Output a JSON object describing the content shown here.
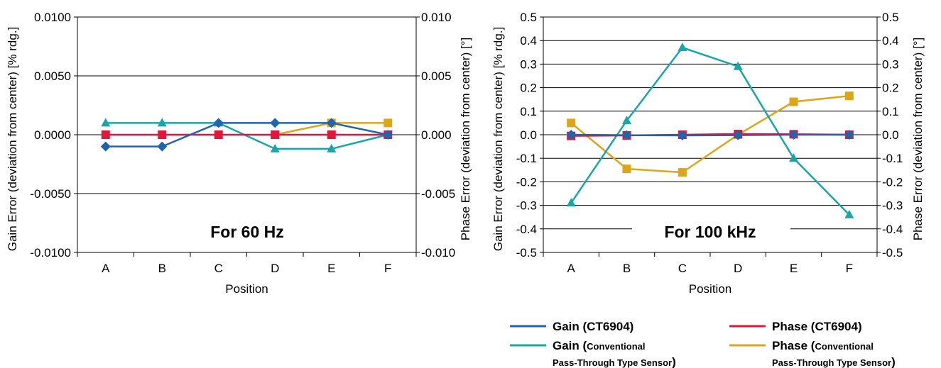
{
  "chart_data": [
    {
      "type": "line",
      "caption": "For 60 Hz",
      "categories": [
        "A",
        "B",
        "C",
        "D",
        "E",
        "F"
      ],
      "xlabel": "Position",
      "ylabel": "Gain Error (deviation from center) [% rdg.]",
      "y2label": "Phase Error (deviation from center) [°]",
      "ylim": [
        -0.01,
        0.01
      ],
      "y2lim": [
        -0.01,
        0.01
      ],
      "yticks": [
        "0.0100",
        "0.0050",
        "0.0000",
        "-0.0050",
        "-0.0100"
      ],
      "y2ticks": [
        "0.010",
        "0.005",
        "0.000",
        "-0.005",
        "-0.010"
      ],
      "grid": "horizontal",
      "series": [
        {
          "name": "Gain (CT6904)",
          "axis": "left",
          "marker": "diamond",
          "color": "#1f64ad",
          "values": [
            -0.001,
            -0.001,
            0.001,
            0.001,
            0.001,
            0.0
          ]
        },
        {
          "name": "Phase (CT6904)",
          "axis": "right",
          "marker": "square",
          "color": "#e0163d",
          "values": [
            0.0,
            0.0,
            0.0,
            0.0,
            0.0,
            0.0
          ]
        },
        {
          "name": "Gain (Conventional Pass-Through Type Sensor)",
          "axis": "left",
          "marker": "triangle",
          "color": "#1aa5a8",
          "values": [
            0.001,
            0.001,
            0.001,
            -0.0012,
            -0.0012,
            0.0
          ]
        },
        {
          "name": "Phase (Conventional Pass-Through Type Sensor)",
          "axis": "right",
          "marker": "square",
          "color": "#dba61c",
          "values": [
            null,
            null,
            null,
            0.0,
            0.001,
            0.001
          ]
        }
      ]
    },
    {
      "type": "line",
      "caption": "For 100 kHz",
      "categories": [
        "A",
        "B",
        "C",
        "D",
        "E",
        "F"
      ],
      "xlabel": "Position",
      "ylabel": "Gain Error (deviation from center) [% rdg.]",
      "y2label": "Phase Error (deviation from center) [°]",
      "ylim": [
        -0.5,
        0.5
      ],
      "y2lim": [
        -0.5,
        0.5
      ],
      "yticks": [
        "0.5",
        "0.4",
        "0.3",
        "0.2",
        "0.1",
        "0.0",
        "-0.1",
        "-0.2",
        "-0.3",
        "-0.4",
        "-0.5"
      ],
      "y2ticks": [
        "0.5",
        "0.4",
        "0.3",
        "0.2",
        "0.1",
        "0.0",
        "-0.1",
        "-0.2",
        "-0.3",
        "-0.4",
        "-0.5"
      ],
      "grid": "horizontal",
      "series": [
        {
          "name": "Gain (CT6904)",
          "axis": "left",
          "marker": "diamond",
          "color": "#1f64ad",
          "values": [
            0.0,
            -0.002,
            -0.003,
            -0.002,
            0.0,
            0.0
          ]
        },
        {
          "name": "Phase (CT6904)",
          "axis": "right",
          "marker": "square",
          "color": "#e0163d",
          "values": [
            -0.005,
            -0.003,
            0.0,
            0.003,
            0.002,
            0.0
          ]
        },
        {
          "name": "Gain (Conventional Pass-Through Type Sensor)",
          "axis": "left",
          "marker": "triangle",
          "color": "#1aa5a8",
          "values": [
            -0.29,
            0.06,
            0.37,
            0.29,
            -0.1,
            -0.34
          ]
        },
        {
          "name": "Phase (Conventional Pass-Through Type Sensor)",
          "axis": "right",
          "marker": "square",
          "color": "#dba61c",
          "values": [
            0.05,
            -0.145,
            -0.16,
            0.0,
            0.14,
            0.165
          ]
        }
      ]
    }
  ],
  "legend": {
    "position": "bottom-right",
    "items": [
      {
        "label": "Gain (",
        "sub1": "Conventional",
        "sub2": "Pass-Through Type Sensor",
        "tail": ")",
        "main": "Gain (CT6904)",
        "color": "#1f64ad"
      }
    ],
    "entries": [
      {
        "main": "Gain (CT6904)",
        "color": "#1f64ad"
      },
      {
        "main": "Phase (CT6904)",
        "color": "#e0163d"
      },
      {
        "main": "Gain (",
        "sub1": "Conventional",
        "sub2": "Pass-Through Type Sensor",
        "tail": ")",
        "color": "#1aa5a8"
      },
      {
        "main": "Phase (",
        "sub1": "Conventional",
        "sub2": "Pass-Through Type Sensor",
        "tail": ")",
        "color": "#dba61c"
      }
    ]
  }
}
